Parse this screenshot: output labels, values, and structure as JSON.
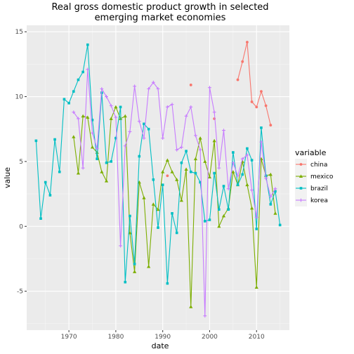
{
  "chart_data": {
    "type": "line",
    "title_lines": [
      "Real gross domestic product growth in selected",
      "emerging market economies"
    ],
    "xlabel": "date",
    "ylabel": "value",
    "xlim": [
      1961,
      2017
    ],
    "ylim": [
      -8,
      15.5
    ],
    "x_ticks": [
      1970,
      1980,
      1990,
      2000,
      2010
    ],
    "y_ticks": [
      -5,
      0,
      5,
      10,
      15
    ],
    "grid": true,
    "legend_title": "variable",
    "legend_position": "right",
    "series": [
      {
        "name": "china",
        "color": "#F8766D",
        "marker": "circle",
        "points": [
          [
            1991,
            3.9
          ],
          [
            1996,
            10.9
          ],
          [
            2001,
            8.3
          ],
          [
            2006,
            11.3
          ],
          [
            2007,
            12.7
          ],
          [
            2008,
            14.2
          ],
          [
            2009,
            9.6
          ],
          [
            2010,
            9.2
          ],
          [
            2011,
            10.4
          ],
          [
            2012,
            9.3
          ],
          [
            2013,
            7.8
          ]
        ]
      },
      {
        "name": "mexico",
        "color": "#7CAE00",
        "marker": "triangle",
        "points": [
          [
            1971,
            6.9
          ],
          [
            1972,
            4.1
          ],
          [
            1973,
            8.5
          ],
          [
            1974,
            8.4
          ],
          [
            1975,
            6.1
          ],
          [
            1976,
            5.7
          ],
          [
            1977,
            4.2
          ],
          [
            1978,
            3.5
          ],
          [
            1979,
            8.3
          ],
          [
            1980,
            9.2
          ],
          [
            1981,
            8.3
          ],
          [
            1982,
            8.5
          ],
          [
            1983,
            -0.5
          ],
          [
            1984,
            -3.5
          ],
          [
            1985,
            3.4
          ],
          [
            1986,
            2.2
          ],
          [
            1987,
            -3.1
          ],
          [
            1988,
            1.7
          ],
          [
            1989,
            1.3
          ],
          [
            1990,
            4.2
          ],
          [
            1991,
            5.1
          ],
          [
            1992,
            4.2
          ],
          [
            1993,
            3.6
          ],
          [
            1994,
            2.0
          ],
          [
            1995,
            4.4
          ],
          [
            1996,
            -6.2
          ],
          [
            1997,
            5.2
          ],
          [
            1998,
            6.8
          ],
          [
            1999,
            5.0
          ],
          [
            2000,
            3.8
          ],
          [
            2001,
            6.6
          ],
          [
            2002,
            0.0
          ],
          [
            2003,
            0.8
          ],
          [
            2004,
            1.4
          ],
          [
            2005,
            4.2
          ],
          [
            2006,
            3.2
          ],
          [
            2007,
            5.0
          ],
          [
            2008,
            3.2
          ],
          [
            2009,
            1.4
          ],
          [
            2010,
            -4.7
          ],
          [
            2011,
            5.2
          ],
          [
            2012,
            3.9
          ],
          [
            2013,
            4.0
          ],
          [
            2014,
            1.0
          ]
        ]
      },
      {
        "name": "brazil",
        "color": "#00BFC4",
        "marker": "square",
        "points": [
          [
            1963,
            6.6
          ],
          [
            1964,
            0.6
          ],
          [
            1965,
            3.4
          ],
          [
            1966,
            2.4
          ],
          [
            1967,
            6.7
          ],
          [
            1968,
            4.2
          ],
          [
            1969,
            9.8
          ],
          [
            1970,
            9.5
          ],
          [
            1971,
            10.4
          ],
          [
            1972,
            11.3
          ],
          [
            1973,
            11.9
          ],
          [
            1974,
            14.0
          ],
          [
            1975,
            8.2
          ],
          [
            1976,
            5.2
          ],
          [
            1977,
            10.3
          ],
          [
            1978,
            4.9
          ],
          [
            1979,
            5.0
          ],
          [
            1980,
            6.8
          ],
          [
            1981,
            9.2
          ],
          [
            1982,
            -4.3
          ],
          [
            1983,
            0.8
          ],
          [
            1984,
            -2.9
          ],
          [
            1985,
            5.4
          ],
          [
            1986,
            7.9
          ],
          [
            1987,
            7.5
          ],
          [
            1988,
            3.6
          ],
          [
            1989,
            -0.1
          ],
          [
            1990,
            3.2
          ],
          [
            1991,
            -4.4
          ],
          [
            1992,
            1.0
          ],
          [
            1993,
            -0.5
          ],
          [
            1994,
            4.9
          ],
          [
            1995,
            5.8
          ],
          [
            1996,
            4.2
          ],
          [
            1997,
            4.1
          ],
          [
            1998,
            3.4
          ],
          [
            1999,
            0.4
          ],
          [
            2000,
            0.5
          ],
          [
            2001,
            4.1
          ],
          [
            2002,
            1.3
          ],
          [
            2003,
            3.1
          ],
          [
            2004,
            1.3
          ],
          [
            2005,
            5.7
          ],
          [
            2006,
            3.2
          ],
          [
            2007,
            4.0
          ],
          [
            2008,
            6.0
          ],
          [
            2009,
            5.1
          ],
          [
            2010,
            -0.2
          ],
          [
            2011,
            7.6
          ],
          [
            2012,
            3.9
          ],
          [
            2013,
            1.7
          ],
          [
            2014,
            2.7
          ],
          [
            2015,
            0.1
          ]
        ]
      },
      {
        "name": "korea",
        "color": "#C77CFF",
        "marker": "cross",
        "points": [
          [
            1971,
            8.8
          ],
          [
            1972,
            8.3
          ],
          [
            1973,
            4.5
          ],
          [
            1974,
            12.1
          ],
          [
            1975,
            7.2
          ],
          [
            1976,
            6.0
          ],
          [
            1977,
            10.6
          ],
          [
            1978,
            10.0
          ],
          [
            1979,
            9.3
          ],
          [
            1980,
            8.4
          ],
          [
            1981,
            -1.5
          ],
          [
            1982,
            6.2
          ],
          [
            1983,
            7.3
          ],
          [
            1984,
            10.8
          ],
          [
            1985,
            8.1
          ],
          [
            1986,
            6.8
          ],
          [
            1987,
            10.6
          ],
          [
            1988,
            11.1
          ],
          [
            1989,
            10.6
          ],
          [
            1990,
            6.8
          ],
          [
            1991,
            9.2
          ],
          [
            1992,
            9.4
          ],
          [
            1993,
            5.9
          ],
          [
            1994,
            6.1
          ],
          [
            1995,
            8.5
          ],
          [
            1996,
            9.2
          ],
          [
            1997,
            7.0
          ],
          [
            1998,
            5.9
          ],
          [
            1999,
            -6.9
          ],
          [
            2000,
            10.7
          ],
          [
            2001,
            8.8
          ],
          [
            2002,
            4.5
          ],
          [
            2003,
            7.4
          ],
          [
            2004,
            2.9
          ],
          [
            2005,
            4.9
          ],
          [
            2006,
            3.9
          ],
          [
            2007,
            5.2
          ],
          [
            2008,
            5.5
          ],
          [
            2009,
            2.8
          ],
          [
            2010,
            0.7
          ],
          [
            2011,
            6.5
          ],
          [
            2012,
            3.7
          ],
          [
            2013,
            2.3
          ],
          [
            2014,
            2.9
          ]
        ]
      }
    ]
  }
}
